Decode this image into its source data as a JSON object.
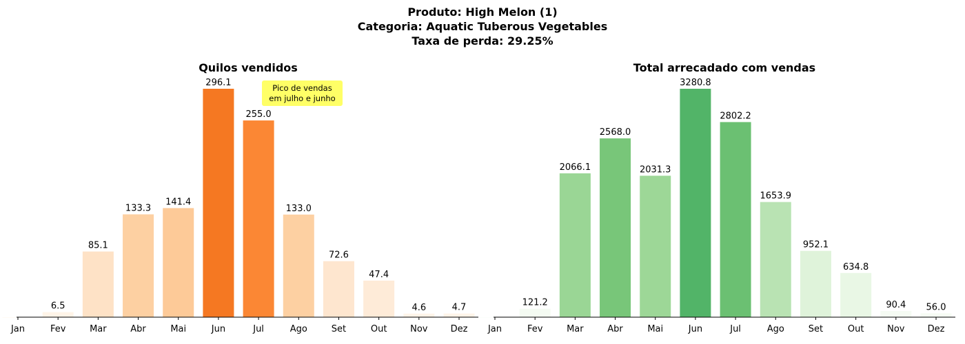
{
  "figure": {
    "title_lines": [
      "Produto: High Melon (1)",
      "Categoria: Aquatic Tuberous Vegetables",
      "Taxa de perda: 29.25%"
    ]
  },
  "chart_data": [
    {
      "type": "bar",
      "title": "Quilos vendidos",
      "categories": [
        "Jan",
        "Fev",
        "Mar",
        "Abr",
        "Mai",
        "Jun",
        "Jul",
        "Ago",
        "Set",
        "Out",
        "Nov",
        "Dez"
      ],
      "values": [
        0,
        6.5,
        85.1,
        133.3,
        141.4,
        296.1,
        255.0,
        133.0,
        72.6,
        47.4,
        4.6,
        4.7
      ],
      "value_labels": [
        "",
        "6.5",
        "85.1",
        "133.3",
        "141.4",
        "296.1",
        "255.0",
        "133.0",
        "72.6",
        "47.4",
        "4.6",
        "4.7"
      ],
      "ylim": [
        0,
        296.1
      ],
      "colormap": "oranges",
      "annotation": {
        "text_lines": [
          "Pico de vendas",
          "em julho e junho"
        ],
        "background": "#ffff66"
      },
      "grid": false
    },
    {
      "type": "bar",
      "title": "Total arrecadado com vendas",
      "categories": [
        "Jan",
        "Fev",
        "Mar",
        "Abr",
        "Mai",
        "Jun",
        "Jul",
        "Ago",
        "Set",
        "Out",
        "Nov",
        "Dez"
      ],
      "values": [
        0,
        121.2,
        2066.1,
        2568.0,
        2031.3,
        3280.8,
        2802.2,
        1653.9,
        952.1,
        634.8,
        90.4,
        56.0
      ],
      "value_labels": [
        "",
        "121.2",
        "2066.1",
        "2568.0",
        "2031.3",
        "3280.8",
        "2802.2",
        "1653.9",
        "952.1",
        "634.8",
        "90.4",
        "56.0"
      ],
      "ylim": [
        0,
        3280.8
      ],
      "colormap": "greens",
      "grid": false
    }
  ]
}
